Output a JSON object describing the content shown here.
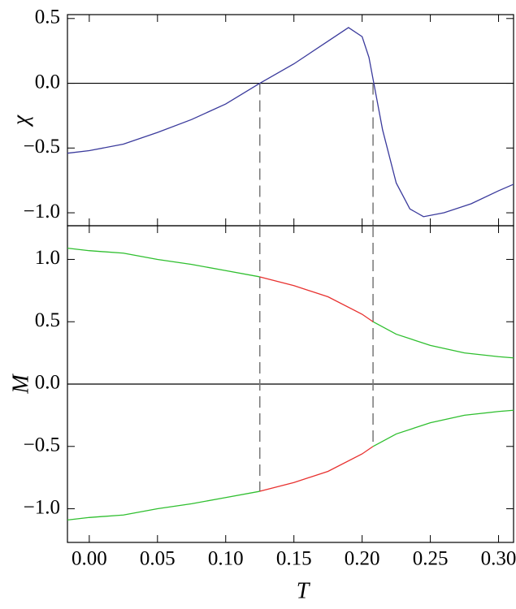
{
  "chart_data": [
    {
      "type": "line",
      "ylabel": "χ",
      "x": [
        -0.016,
        0,
        0.025,
        0.05,
        0.075,
        0.1,
        0.125,
        0.15,
        0.175,
        0.19,
        0.2,
        0.205,
        0.215,
        0.225,
        0.235,
        0.245,
        0.26,
        0.28,
        0.3,
        0.311
      ],
      "series": [
        {
          "color": "#3a3a9c",
          "values": [
            -0.54,
            -0.52,
            -0.47,
            -0.38,
            -0.28,
            -0.16,
            0,
            0.15,
            0.325,
            0.43,
            0.36,
            0.2,
            -0.36,
            -0.77,
            -0.97,
            -1.03,
            -1.0,
            -0.93,
            -0.83,
            -0.78
          ]
        }
      ],
      "xlim": [
        -0.016,
        0.311
      ],
      "ylim": [
        -1.1,
        0.53
      ],
      "yticks": [
        {
          "value": 0.5,
          "label": "0.5"
        },
        {
          "value": 0,
          "label": "0.0"
        },
        {
          "value": -0.5,
          "label": "−0.5"
        },
        {
          "value": -1,
          "label": "−1.0"
        }
      ],
      "zero_line": true,
      "vlines": [
        0.125,
        0.208
      ]
    },
    {
      "type": "line",
      "ylabel": "M",
      "xlabel": "T",
      "x": [
        -0.016,
        0,
        0.025,
        0.05,
        0.075,
        0.1,
        0.125,
        0.15,
        0.175,
        0.2,
        0.208,
        0.225,
        0.25,
        0.275,
        0.3,
        0.311
      ],
      "series": [
        {
          "color": "#2fbf2f",
          "values": [
            1.09,
            1.07,
            1.05,
            1.0,
            0.96,
            0.91,
            0.86,
            null,
            null,
            null,
            0.5,
            0.4,
            0.31,
            0.25,
            0.22,
            0.21
          ]
        },
        {
          "color": "#e8312f",
          "values": [
            null,
            null,
            null,
            null,
            null,
            null,
            0.86,
            0.79,
            0.7,
            0.56,
            0.5,
            null,
            null,
            null,
            null,
            null
          ]
        },
        {
          "color": "#2fbf2f",
          "values": [
            -1.09,
            -1.07,
            -1.05,
            -1.0,
            -0.96,
            -0.91,
            -0.86,
            null,
            null,
            null,
            -0.5,
            -0.4,
            -0.31,
            -0.25,
            -0.22,
            -0.21
          ]
        },
        {
          "color": "#e8312f",
          "values": [
            null,
            null,
            null,
            null,
            null,
            null,
            -0.86,
            -0.79,
            -0.7,
            -0.56,
            -0.5,
            null,
            null,
            null,
            null,
            null
          ]
        }
      ],
      "xlim": [
        -0.016,
        0.311
      ],
      "ylim": [
        -1.27,
        1.27
      ],
      "xticks": [
        {
          "value": 0,
          "label": "0.00"
        },
        {
          "value": 0.05,
          "label": "0.05"
        },
        {
          "value": 0.1,
          "label": "0.10"
        },
        {
          "value": 0.15,
          "label": "0.15"
        },
        {
          "value": 0.2,
          "label": "0.20"
        },
        {
          "value": 0.25,
          "label": "0.25"
        },
        {
          "value": 0.3,
          "label": "0.30"
        }
      ],
      "yticks": [
        {
          "value": 1,
          "label": "1.0"
        },
        {
          "value": 0.5,
          "label": "0.5"
        },
        {
          "value": 0,
          "label": "0.0"
        },
        {
          "value": -0.5,
          "label": "−0.5"
        },
        {
          "value": -1,
          "label": "−1.0"
        }
      ],
      "zero_line": true,
      "vlines": [
        0.125,
        0.208
      ]
    }
  ]
}
